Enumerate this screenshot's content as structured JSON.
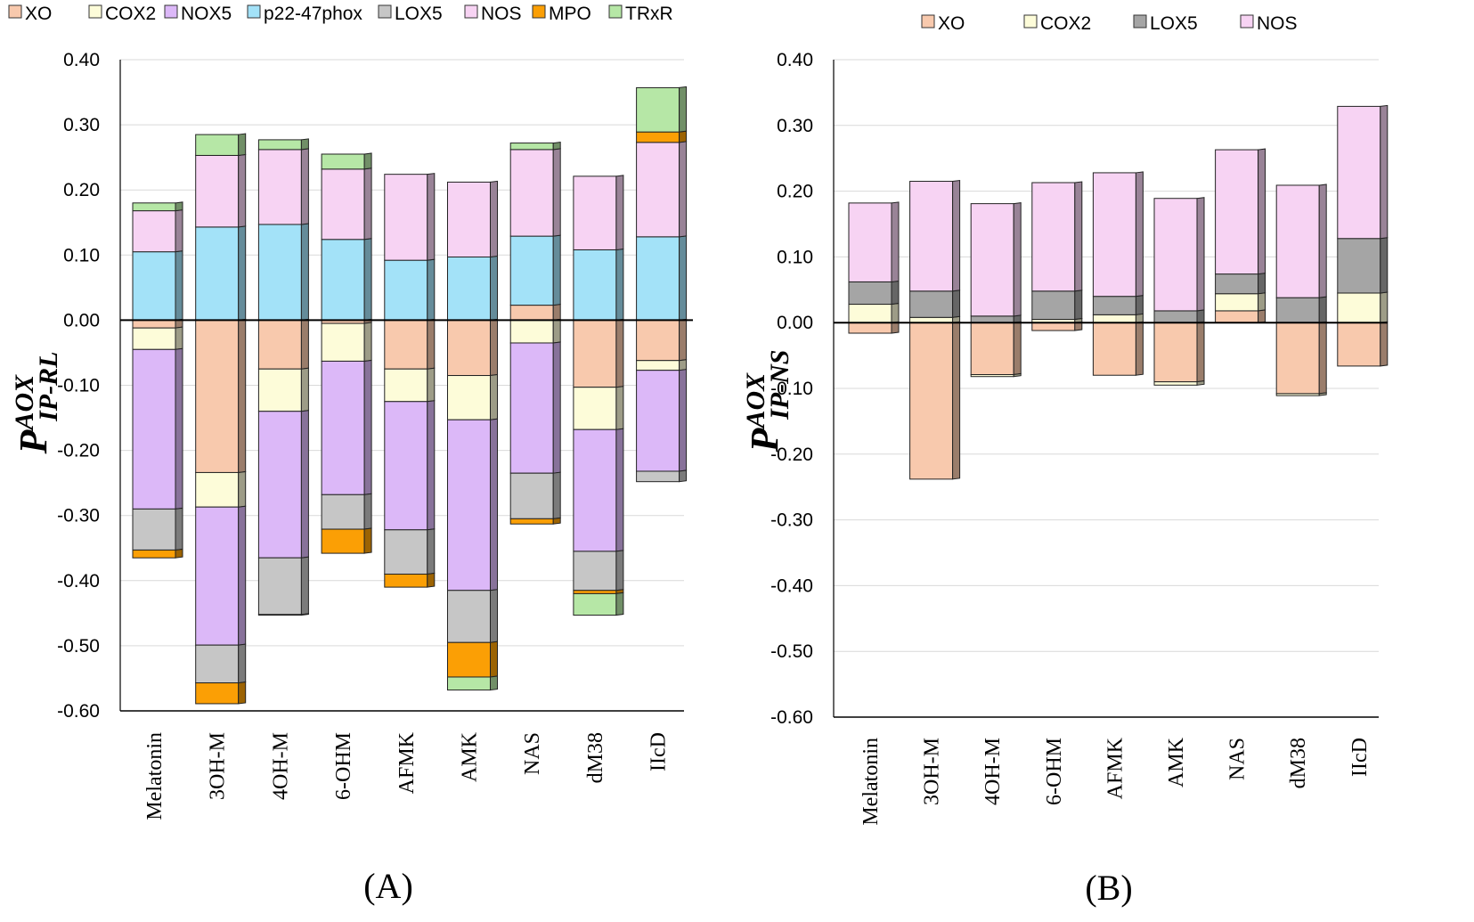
{
  "colors": {
    "XO": "#f8c9ad",
    "COX2": "#fdfcd9",
    "NOX5": "#dcb8f8",
    "p22-47phox": "#a3e2f8",
    "LOX5": "#c6c6c6",
    "NOS": "#f7d3f3",
    "MPO": "#fb9f05",
    "TRxR": "#b6e7a6",
    "LOX5_B": "#a5a5a5"
  },
  "chart_data": [
    {
      "type": "bar",
      "stacked": true,
      "panel_label": "(A)",
      "ylabel": {
        "main": "P",
        "sup": "AOX",
        "sub": "IP-RL"
      },
      "ylim": [
        -0.6,
        0.4
      ],
      "yticks": [
        "0.40",
        "0.30",
        "0.20",
        "0.10",
        "0.00",
        "-0.10",
        "-0.20",
        "-0.30",
        "-0.40",
        "-0.50",
        "-0.60"
      ],
      "grid": true,
      "legend": [
        "XO",
        "COX2",
        "NOX5",
        "p22-47phox",
        "LOX5",
        "NOS",
        "MPO",
        "TRxR"
      ],
      "legend_position": "top",
      "categories": [
        "Melatonin",
        "3OH-M",
        "4OH-M",
        "6-OHM",
        "AFMK",
        "AMK",
        "NAS",
        "dM38",
        "IIcD"
      ],
      "series": [
        {
          "name": "XO",
          "values": [
            -0.012,
            -0.234,
            -0.075,
            -0.005,
            -0.075,
            -0.085,
            0.023,
            -0.103,
            -0.062
          ]
        },
        {
          "name": "COX2",
          "values": [
            -0.033,
            -0.053,
            -0.065,
            -0.058,
            -0.05,
            -0.068,
            -0.035,
            -0.065,
            -0.015
          ]
        },
        {
          "name": "NOX5",
          "values": [
            -0.245,
            -0.212,
            -0.225,
            -0.205,
            -0.197,
            -0.262,
            -0.2,
            -0.187,
            -0.155
          ]
        },
        {
          "name": "p22-47phox",
          "values": [
            0.105,
            0.143,
            0.147,
            0.124,
            0.092,
            0.097,
            0.106,
            0.108,
            0.128
          ]
        },
        {
          "name": "LOX5",
          "values": [
            -0.063,
            -0.058,
            -0.087,
            -0.053,
            -0.068,
            -0.08,
            -0.07,
            -0.06,
            -0.016
          ]
        },
        {
          "name": "NOS",
          "values": [
            0.063,
            0.11,
            0.115,
            0.108,
            0.132,
            0.115,
            0.133,
            0.113,
            0.145
          ]
        },
        {
          "name": "MPO",
          "values": [
            -0.012,
            -0.032,
            -0.001,
            -0.037,
            -0.02,
            -0.053,
            -0.008,
            -0.005,
            0.016
          ]
        },
        {
          "name": "TRxR",
          "values": [
            0.012,
            0.032,
            0.015,
            0.023,
            0.0,
            -0.02,
            0.01,
            -0.033,
            0.068
          ]
        }
      ]
    },
    {
      "type": "bar",
      "stacked": true,
      "panel_label": "(B)",
      "ylabel": {
        "main": "P",
        "sup": "AOX",
        "sub": "IP-NS"
      },
      "ylim": [
        -0.6,
        0.4
      ],
      "yticks": [
        "0.40",
        "0.30",
        "0.20",
        "0.10",
        "0.00",
        "-0.10",
        "-0.20",
        "-0.30",
        "-0.40",
        "-0.50",
        "-0.60"
      ],
      "grid": true,
      "legend": [
        "XO",
        "COX2",
        "LOX5",
        "NOS"
      ],
      "legend_position": "top",
      "categories": [
        "Melatonin",
        "3OH-M",
        "4OH-M",
        "6-OHM",
        "AFMK",
        "AMK",
        "NAS",
        "dM38",
        "IIcD"
      ],
      "series": [
        {
          "name": "XO",
          "values": [
            -0.016,
            -0.238,
            -0.079,
            -0.012,
            -0.08,
            -0.09,
            0.018,
            -0.108,
            -0.066
          ]
        },
        {
          "name": "COX2",
          "values": [
            0.028,
            0.008,
            -0.003,
            0.005,
            0.012,
            -0.005,
            0.026,
            -0.003,
            0.045
          ]
        },
        {
          "name": "LOX5",
          "values": [
            0.034,
            0.04,
            0.01,
            0.043,
            0.028,
            0.018,
            0.03,
            0.038,
            0.083
          ]
        },
        {
          "name": "NOS",
          "values": [
            0.12,
            0.167,
            0.171,
            0.165,
            0.188,
            0.171,
            0.189,
            0.171,
            0.201
          ]
        }
      ]
    }
  ]
}
